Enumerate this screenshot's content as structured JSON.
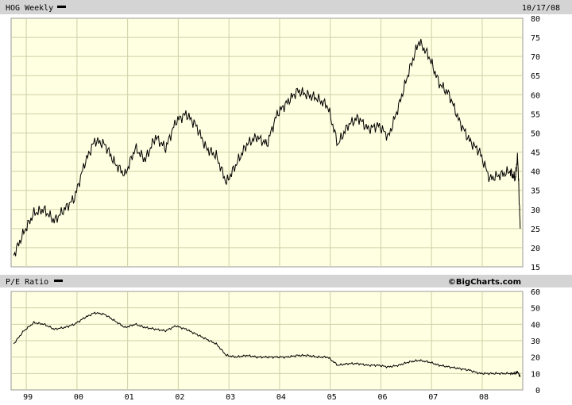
{
  "chart_data": [
    {
      "type": "line",
      "title": "HOG Weekly",
      "date": "10/17/08",
      "y_range": [
        15,
        80
      ],
      "y_ticks": [
        15,
        20,
        25,
        30,
        35,
        40,
        45,
        50,
        55,
        60,
        65,
        70,
        75,
        80
      ],
      "grid": true,
      "series": [
        {
          "name": "HOG Weekly",
          "x": [
            1998.8,
            1999.0,
            1999.2,
            1999.4,
            1999.6,
            1999.8,
            2000.0,
            2000.2,
            2000.4,
            2000.6,
            2000.8,
            2001.0,
            2001.2,
            2001.4,
            2001.6,
            2001.8,
            2002.0,
            2002.2,
            2002.4,
            2002.6,
            2002.8,
            2003.0,
            2003.2,
            2003.4,
            2003.6,
            2003.8,
            2004.0,
            2004.2,
            2004.4,
            2004.6,
            2004.8,
            2005.0,
            2005.2,
            2005.4,
            2005.6,
            2005.8,
            2006.0,
            2006.2,
            2006.4,
            2006.6,
            2006.8,
            2007.0,
            2007.2,
            2007.4,
            2007.6,
            2007.8,
            2008.0,
            2008.2,
            2008.4,
            2008.6,
            2008.7,
            2008.75,
            2008.8
          ],
          "values": [
            18,
            24,
            29,
            30,
            27,
            30,
            33,
            42,
            48,
            47,
            42,
            39,
            46,
            43,
            49,
            46,
            53,
            55,
            52,
            46,
            44,
            37,
            42,
            47,
            49,
            47,
            55,
            58,
            61,
            60,
            59,
            57,
            47,
            52,
            54,
            51,
            52,
            49,
            57,
            66,
            74,
            70,
            63,
            60,
            53,
            48,
            45,
            38,
            39,
            40,
            38,
            44,
            25
          ]
        }
      ]
    },
    {
      "type": "line",
      "title": "P/E Ratio",
      "y_range": [
        0,
        60
      ],
      "y_ticks": [
        0,
        10,
        20,
        30,
        40,
        50,
        60
      ],
      "x_tick_labels": [
        "99",
        "00",
        "01",
        "02",
        "03",
        "04",
        "05",
        "06",
        "07",
        "08"
      ],
      "grid": true,
      "series": [
        {
          "name": "P/E Ratio",
          "x": [
            1998.8,
            1999.0,
            1999.2,
            1999.4,
            1999.6,
            1999.8,
            2000.0,
            2000.2,
            2000.4,
            2000.6,
            2000.8,
            2001.0,
            2001.2,
            2001.4,
            2001.6,
            2001.8,
            2002.0,
            2002.2,
            2002.4,
            2002.6,
            2002.8,
            2003.0,
            2003.2,
            2003.4,
            2003.6,
            2003.8,
            2004.0,
            2004.2,
            2004.4,
            2004.6,
            2004.8,
            2005.0,
            2005.2,
            2005.4,
            2005.6,
            2005.8,
            2006.0,
            2006.2,
            2006.4,
            2006.6,
            2006.8,
            2007.0,
            2007.2,
            2007.4,
            2007.6,
            2007.8,
            2008.0,
            2008.2,
            2008.4,
            2008.6,
            2008.7,
            2008.75,
            2008.8
          ],
          "values": [
            28,
            36,
            41,
            40,
            37,
            38,
            40,
            44,
            47,
            46,
            42,
            38,
            40,
            38,
            37,
            36,
            39,
            37,
            34,
            31,
            28,
            21,
            20,
            21,
            20,
            20,
            20,
            20,
            21,
            21,
            20,
            20,
            15,
            16,
            16,
            15,
            15,
            14,
            15,
            17,
            18,
            17,
            15,
            14,
            13,
            12,
            10,
            10,
            10,
            10,
            10,
            11,
            8
          ]
        }
      ]
    }
  ],
  "footer": {
    "brand": "©BigCharts.com"
  }
}
